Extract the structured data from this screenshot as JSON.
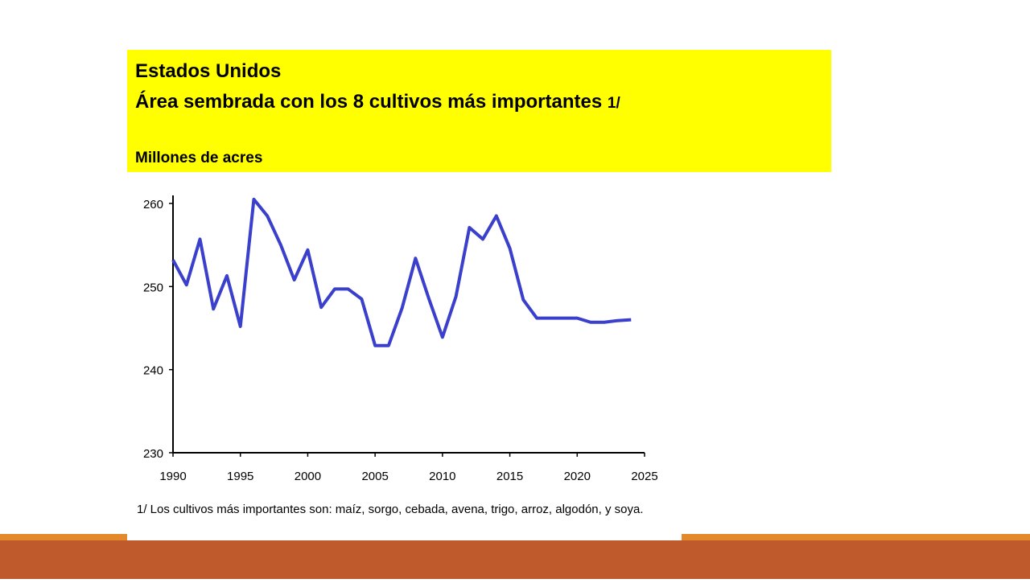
{
  "chart_data": {
    "type": "line",
    "title": [
      "Estados Unidos",
      "Área sembrada con los 8 cultivos más importantes"
    ],
    "title_note": "1/",
    "subtitle": "Millones de acres",
    "footnote": "1/ Los cultivos más importantes son: maíz, sorgo, cebada, avena, trigo, arroz, algodón, y soya.",
    "x": [
      1990,
      1991,
      1992,
      1993,
      1994,
      1995,
      1996,
      1997,
      1998,
      1999,
      2000,
      2001,
      2002,
      2003,
      2004,
      2005,
      2006,
      2007,
      2008,
      2009,
      2010,
      2011,
      2012,
      2013,
      2014,
      2015,
      2016,
      2017,
      2018,
      2019,
      2020,
      2021,
      2022,
      2023,
      2024
    ],
    "series": [
      {
        "color": "#3a3fcc",
        "values": [
          253.2,
          250.2,
          255.7,
          247.3,
          251.3,
          245.2,
          260.5,
          258.5,
          255.0,
          250.8,
          254.4,
          247.5,
          249.7,
          249.7,
          248.5,
          242.9,
          242.9,
          247.4,
          253.4,
          248.5,
          243.9,
          248.8,
          257.1,
          255.7,
          258.5,
          254.6,
          248.4,
          246.2,
          246.2,
          246.2,
          246.2,
          245.7,
          245.7,
          245.9,
          246.0
        ]
      }
    ],
    "xlim": [
      1990,
      2025
    ],
    "xticks": [
      1990,
      1995,
      2000,
      2005,
      2010,
      2015,
      2020,
      2025
    ],
    "ylim": [
      230,
      260
    ],
    "yticks": [
      230,
      240,
      250,
      260
    ]
  }
}
